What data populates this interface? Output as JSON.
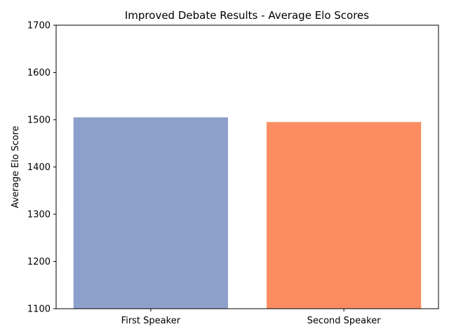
{
  "chart_data": {
    "type": "bar",
    "title": "Improved Debate Results - Average Elo Scores",
    "xlabel": "",
    "ylabel": "Average Elo Score",
    "categories": [
      "First Speaker",
      "Second Speaker"
    ],
    "values": [
      1505,
      1495
    ],
    "colors": [
      "#8da0cb",
      "#fc8d62"
    ],
    "ylim": [
      1100,
      1700
    ],
    "yticks": [
      1100,
      1200,
      1300,
      1400,
      1500,
      1600,
      1700
    ],
    "grid": false,
    "legend": "none"
  }
}
